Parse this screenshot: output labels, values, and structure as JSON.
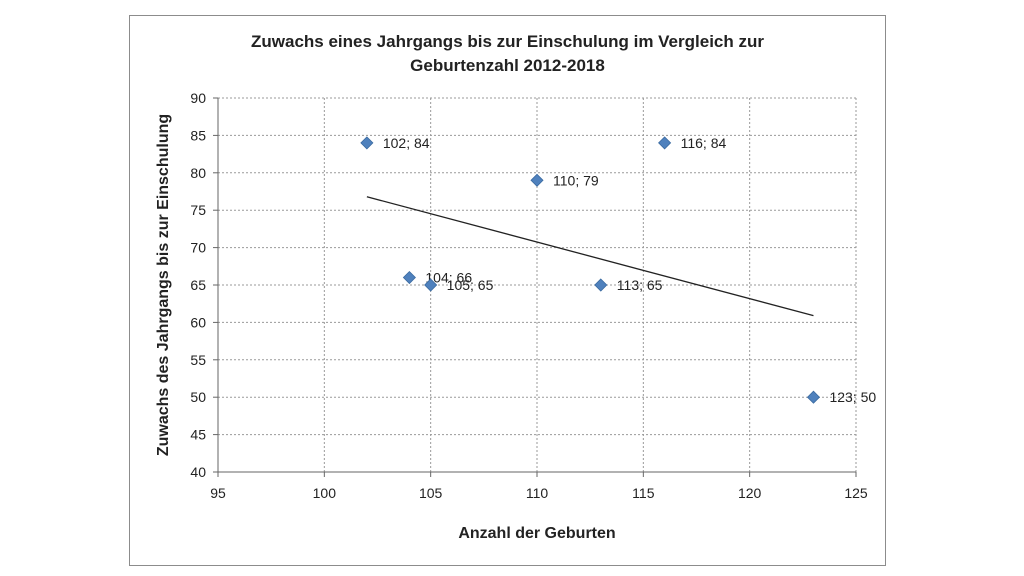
{
  "chart_data": {
    "type": "scatter",
    "title_lines": [
      "Zuwachs eines Jahrgangs bis zur Einschulung im Vergleich zur",
      "Geburtenzahl 2012-2018"
    ],
    "xlabel": "Anzahl der Geburten",
    "ylabel": "Zuwachs des Jahrgangs bis zur Einschulung",
    "xlim": [
      95,
      125
    ],
    "ylim": [
      40,
      90
    ],
    "xticks": [
      "95",
      "100",
      "105",
      "110",
      "115",
      "120",
      "125"
    ],
    "yticks": [
      "40",
      "45",
      "50",
      "55",
      "60",
      "65",
      "70",
      "75",
      "80",
      "85",
      "90"
    ],
    "grid": true,
    "marker_color": "#4f81bd",
    "points": [
      {
        "x": 102,
        "y": 84,
        "label": "102; 84"
      },
      {
        "x": 104,
        "y": 66,
        "label": "104; 66"
      },
      {
        "x": 105,
        "y": 65,
        "label": "105; 65"
      },
      {
        "x": 110,
        "y": 79,
        "label": "110; 79"
      },
      {
        "x": 113,
        "y": 65,
        "label": "113; 65"
      },
      {
        "x": 116,
        "y": 84,
        "label": "116; 84"
      },
      {
        "x": 123,
        "y": 50,
        "label": "123; 50"
      }
    ],
    "trendline": {
      "type": "linear",
      "x_start": 102,
      "y_start": 76.8,
      "x_end": 123,
      "y_end": 60.9
    }
  }
}
